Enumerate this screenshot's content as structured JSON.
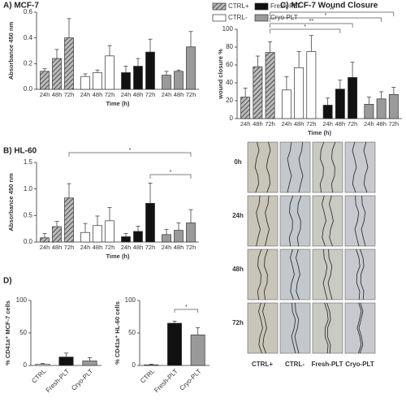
{
  "chart_data": [
    {
      "type": "grouped_bar",
      "title": "A) MCF-7",
      "y_label": "Absorbance 450 nm",
      "x_label": "Time (h)",
      "categories": [
        "24h",
        "48h",
        "72h"
      ],
      "ylim": [
        0,
        0.6
      ],
      "yticks": [
        {
          "value": 0,
          "label": "0.0"
        },
        0.2,
        0.4,
        0.6
      ],
      "series": [
        {
          "name": "CTRL+",
          "color": "#9a9a9a",
          "hatch": true,
          "values": [
            0.14,
            0.24,
            0.4
          ],
          "errors": [
            0.02,
            0.07,
            0.15
          ]
        },
        {
          "name": "CTRL-",
          "color": "#ffffff",
          "values": [
            0.1,
            0.13,
            0.26
          ],
          "errors": [
            0.02,
            0.02,
            0.08
          ]
        },
        {
          "name": "Fresh-PLT",
          "color": "#111111",
          "values": [
            0.13,
            0.18,
            0.29
          ],
          "errors": [
            0.05,
            0.06,
            0.1
          ]
        },
        {
          "name": "Cryo-PLT",
          "color": "#9a9a9a",
          "values": [
            0.11,
            0.14,
            0.33
          ],
          "errors": [
            0.03,
            0.01,
            0.12
          ]
        }
      ],
      "legend": "top-right"
    },
    {
      "type": "grouped_bar",
      "title": "B) HL-60",
      "y_label": "Absorbance 450 nm",
      "x_label": "Time (h)",
      "categories": [
        "24h",
        "48h",
        "72h"
      ],
      "ylim": [
        0,
        1.5
      ],
      "yticks": [
        {
          "value": 0,
          "label": "0.0"
        },
        0.5,
        {
          "value": 1,
          "label": "1.0"
        },
        1.5
      ],
      "series": [
        {
          "color": "#9a9a9a",
          "hatch": true,
          "values": [
            0.08,
            0.29,
            0.83
          ],
          "errors": [
            0.08,
            0.1,
            0.27
          ]
        },
        {
          "color": "#ffffff",
          "values": [
            0.18,
            0.31,
            0.4
          ],
          "errors": [
            0.17,
            0.18,
            0.25
          ]
        },
        {
          "color": "#111111",
          "values": [
            0.1,
            0.2,
            0.73
          ],
          "errors": [
            0.06,
            0.1,
            0.38
          ]
        },
        {
          "color": "#9a9a9a",
          "values": [
            0.14,
            0.22,
            0.36
          ],
          "errors": [
            0.1,
            0.14,
            0.25
          ]
        }
      ],
      "annotations": [
        "*",
        "*"
      ]
    },
    {
      "type": "grouped_bar",
      "title": "C) MCF-7 Wound Closure",
      "y_label": "wound closure %",
      "x_label": "Time (h)",
      "categories": [
        "24h",
        "48h",
        "72h"
      ],
      "ylim": [
        0,
        100
      ],
      "yticks": [
        0,
        20,
        40,
        60,
        80,
        100
      ],
      "series": [
        {
          "color": "#9a9a9a",
          "hatch": true,
          "values": [
            24,
            58,
            74
          ],
          "errors": [
            10,
            12,
            12
          ]
        },
        {
          "color": "#ffffff",
          "values": [
            32,
            57,
            75
          ],
          "errors": [
            15,
            18,
            18
          ]
        },
        {
          "color": "#111111",
          "values": [
            15,
            33,
            46
          ],
          "errors": [
            8,
            10,
            17
          ]
        },
        {
          "color": "#9a9a9a",
          "values": [
            16,
            22,
            27
          ],
          "errors": [
            8,
            8,
            8
          ]
        }
      ],
      "annotations": [
        "**",
        "*",
        "**",
        "*"
      ]
    },
    {
      "type": "bar",
      "title": "D)",
      "y_label": "% CD41a⁺ MCF-7 cells",
      "categories": [
        "CTRL",
        "Fresh-PLT",
        "Cryo-PLT"
      ],
      "colors": [
        "#ffffff",
        "#111111",
        "#9a9a9a"
      ],
      "values": [
        2,
        13,
        7
      ],
      "errors": [
        1,
        6,
        5
      ],
      "ylim": [
        0,
        100
      ],
      "yticks": [
        0,
        50,
        100
      ]
    },
    {
      "type": "bar",
      "y_label": "% CD41a⁺ HL-60 cells",
      "categories": [
        "CTRL",
        "Fresh-PLT",
        "Cryo-PLT"
      ],
      "colors": [
        "#ffffff",
        "#111111",
        "#9a9a9a"
      ],
      "values": [
        1,
        65,
        47
      ],
      "errors": [
        1,
        3,
        11
      ],
      "ylim": [
        0,
        100
      ],
      "yticks": [
        0,
        50,
        100
      ],
      "annotations": [
        "*"
      ]
    }
  ],
  "wound_images": {
    "rows": [
      "0h",
      "24h",
      "48h",
      "72h"
    ],
    "columns": [
      "CTRL+",
      "CTRL-",
      "Fresh-PLT",
      "Cryo-PLT"
    ]
  }
}
